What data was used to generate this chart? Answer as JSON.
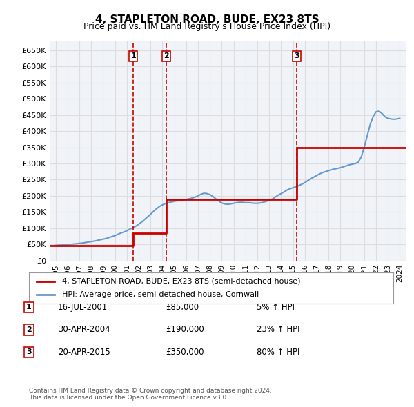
{
  "title": "4, STAPLETON ROAD, BUDE, EX23 8TS",
  "subtitle": "Price paid vs. HM Land Registry's House Price Index (HPI)",
  "sales": [
    {
      "date": 2001.54,
      "price": 85000,
      "label": "1",
      "date_str": "16-JUL-2001",
      "price_str": "£85,000",
      "hpi_str": "5% ↑ HPI"
    },
    {
      "date": 2004.33,
      "price": 190000,
      "label": "2",
      "date_str": "30-APR-2004",
      "price_str": "£190,000",
      "hpi_str": "23% ↑ HPI"
    },
    {
      "date": 2015.3,
      "price": 350000,
      "label": "3",
      "date_str": "20-APR-2015",
      "price_str": "£350,000",
      "hpi_str": "80% ↑ HPI"
    }
  ],
  "price_line_color": "#cc0000",
  "hpi_line_color": "#6699cc",
  "vline_color": "#cc0000",
  "grid_color": "#dddddd",
  "ylim": [
    0,
    680000
  ],
  "xlim": [
    1994.5,
    2024.5
  ],
  "yticks": [
    0,
    50000,
    100000,
    150000,
    200000,
    250000,
    300000,
    350000,
    400000,
    450000,
    500000,
    550000,
    600000,
    650000
  ],
  "xticks": [
    1995,
    1996,
    1997,
    1998,
    1999,
    2000,
    2001,
    2002,
    2003,
    2004,
    2005,
    2006,
    2007,
    2008,
    2009,
    2010,
    2011,
    2012,
    2013,
    2014,
    2015,
    2016,
    2017,
    2018,
    2019,
    2020,
    2021,
    2022,
    2023,
    2024
  ],
  "legend_label_price": "4, STAPLETON ROAD, BUDE, EX23 8TS (semi-detached house)",
  "legend_label_hpi": "HPI: Average price, semi-detached house, Cornwall",
  "footer": "Contains HM Land Registry data © Crown copyright and database right 2024.\nThis data is licensed under the Open Government Licence v3.0.",
  "hpi_data_x": [
    1995,
    1995.25,
    1995.5,
    1995.75,
    1996,
    1996.25,
    1996.5,
    1996.75,
    1997,
    1997.25,
    1997.5,
    1997.75,
    1998,
    1998.25,
    1998.5,
    1998.75,
    1999,
    1999.25,
    1999.5,
    1999.75,
    2000,
    2000.25,
    2000.5,
    2000.75,
    2001,
    2001.25,
    2001.5,
    2001.75,
    2002,
    2002.25,
    2002.5,
    2002.75,
    2003,
    2003.25,
    2003.5,
    2003.75,
    2004,
    2004.25,
    2004.5,
    2004.75,
    2005,
    2005.25,
    2005.5,
    2005.75,
    2006,
    2006.25,
    2006.5,
    2006.75,
    2007,
    2007.25,
    2007.5,
    2007.75,
    2008,
    2008.25,
    2008.5,
    2008.75,
    2009,
    2009.25,
    2009.5,
    2009.75,
    2010,
    2010.25,
    2010.5,
    2010.75,
    2011,
    2011.25,
    2011.5,
    2011.75,
    2012,
    2012.25,
    2012.5,
    2012.75,
    2013,
    2013.25,
    2013.5,
    2013.75,
    2014,
    2014.25,
    2014.5,
    2014.75,
    2015,
    2015.25,
    2015.5,
    2015.75,
    2016,
    2016.25,
    2016.5,
    2016.75,
    2017,
    2017.25,
    2017.5,
    2017.75,
    2018,
    2018.25,
    2018.5,
    2018.75,
    2019,
    2019.25,
    2019.5,
    2019.75,
    2020,
    2020.25,
    2020.5,
    2020.75,
    2021,
    2021.25,
    2021.5,
    2021.75,
    2022,
    2022.25,
    2022.5,
    2022.75,
    2023,
    2023.25,
    2023.5,
    2023.75,
    2024
  ],
  "hpi_data_y": [
    47000,
    47500,
    48000,
    48500,
    49000,
    50000,
    51000,
    52000,
    53000,
    54000,
    55500,
    57000,
    58500,
    60000,
    62000,
    64000,
    66000,
    68000,
    71000,
    74000,
    77000,
    81000,
    85000,
    88000,
    92000,
    97000,
    101000,
    106000,
    112000,
    119000,
    127000,
    135000,
    143000,
    152000,
    160000,
    167000,
    172000,
    176000,
    179000,
    181000,
    183000,
    185000,
    186000,
    187000,
    189000,
    191000,
    193000,
    196000,
    200000,
    205000,
    208000,
    207000,
    204000,
    198000,
    191000,
    184000,
    178000,
    175000,
    174000,
    175000,
    177000,
    179000,
    180000,
    180000,
    179000,
    179000,
    178000,
    177000,
    177000,
    178000,
    180000,
    183000,
    186000,
    190000,
    196000,
    202000,
    207000,
    212000,
    218000,
    222000,
    225000,
    228000,
    232000,
    236000,
    241000,
    247000,
    253000,
    258000,
    263000,
    268000,
    272000,
    275000,
    278000,
    281000,
    283000,
    285000,
    287000,
    290000,
    293000,
    296000,
    298000,
    300000,
    304000,
    320000,
    350000,
    385000,
    420000,
    445000,
    460000,
    462000,
    455000,
    445000,
    440000,
    438000,
    437000,
    438000,
    440000
  ],
  "price_line_x": [
    1994.5,
    2001.54,
    2001.54,
    2004.33,
    2004.33,
    2015.3,
    2015.3,
    2024.5
  ],
  "price_line_y": [
    47000,
    47000,
    85000,
    85000,
    190000,
    190000,
    350000,
    350000
  ],
  "background_color": "#ffffff",
  "plot_bg_color": "#f0f4f8"
}
